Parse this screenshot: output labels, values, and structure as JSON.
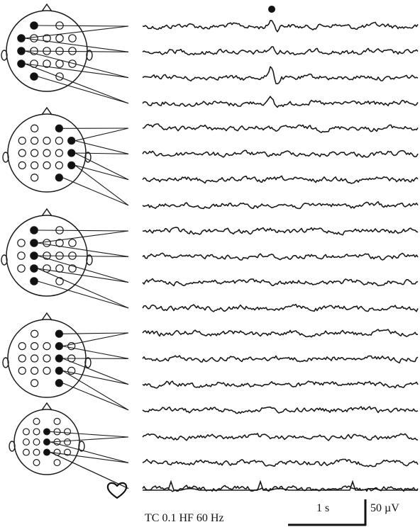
{
  "footer": {
    "filter_settings": "TC 0.1  HF 60 Hz",
    "time_scale": "1 s",
    "amplitude_scale": "50 µV"
  },
  "colors": {
    "ink": "#1a1a1a",
    "background": "#ffffff"
  },
  "montages": [
    {
      "name": "montage-1",
      "channels": 4,
      "active": [
        [
          0,
          1
        ],
        [
          1,
          0
        ],
        [
          2,
          0
        ],
        [
          3,
          0
        ],
        [
          4,
          1
        ]
      ]
    },
    {
      "name": "montage-2",
      "channels": 4,
      "active": [
        [
          0,
          3
        ],
        [
          1,
          4
        ],
        [
          2,
          4
        ],
        [
          3,
          4
        ],
        [
          4,
          3
        ]
      ]
    },
    {
      "name": "montage-3",
      "channels": 4,
      "active": [
        [
          0,
          1
        ],
        [
          1,
          1
        ],
        [
          2,
          1
        ],
        [
          3,
          1
        ],
        [
          4,
          1
        ]
      ]
    },
    {
      "name": "montage-4",
      "channels": 4,
      "active": [
        [
          0,
          3
        ],
        [
          1,
          3
        ],
        [
          2,
          3
        ],
        [
          3,
          3
        ],
        [
          4,
          3
        ]
      ]
    },
    {
      "name": "montage-5",
      "channels": 3,
      "active": [
        [
          1,
          2
        ],
        [
          2,
          2
        ],
        [
          3,
          2
        ]
      ]
    }
  ],
  "icons": {
    "event_marker": "filled-dot",
    "ecg_channel": "heart-outline-icon"
  }
}
